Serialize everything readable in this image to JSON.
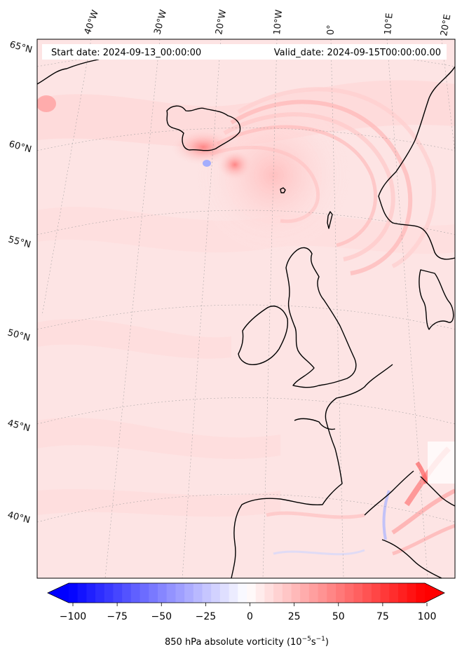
{
  "header": {
    "start_date": "Start date: 2024-09-13_00:00:00",
    "valid_date": "Valid_date: 2024-09-15T00:00:00.00"
  },
  "map": {
    "projection": "conic",
    "gridlines": true,
    "coastlines": true,
    "longitude_labels": [
      "40°W",
      "30°W",
      "20°W",
      "10°W",
      "0°",
      "10°E",
      "20°E"
    ],
    "latitude_labels": [
      "65°N",
      "60°N",
      "55°N",
      "50°N",
      "45°N",
      "40°N"
    ],
    "background_color": "#fde4e4",
    "features": [
      {
        "name": "Iceland low vorticity maximum",
        "color": "#ff8a8a"
      },
      {
        "name": "spiral vorticity bands west of Norway",
        "color": "#ffb3b3"
      },
      {
        "name": "negative vorticity near Iceland",
        "color": "#9aa6ff"
      },
      {
        "name": "strong bands over Mediterranean",
        "color": "#ff6b6b"
      }
    ]
  },
  "colorbar": {
    "ticks": [
      "−100",
      "−75",
      "−50",
      "−25",
      "0",
      "25",
      "50",
      "75",
      "100"
    ],
    "min": -100,
    "max": 100,
    "low_color": "#0000ff",
    "mid_color": "#ffffff",
    "high_color": "#ff0000",
    "extend": "both",
    "title_main": "850 hPa absolute vorticity (10",
    "title_exp1": "−5",
    "title_mid": "s",
    "title_exp2": "−1",
    "title_end": ")"
  }
}
